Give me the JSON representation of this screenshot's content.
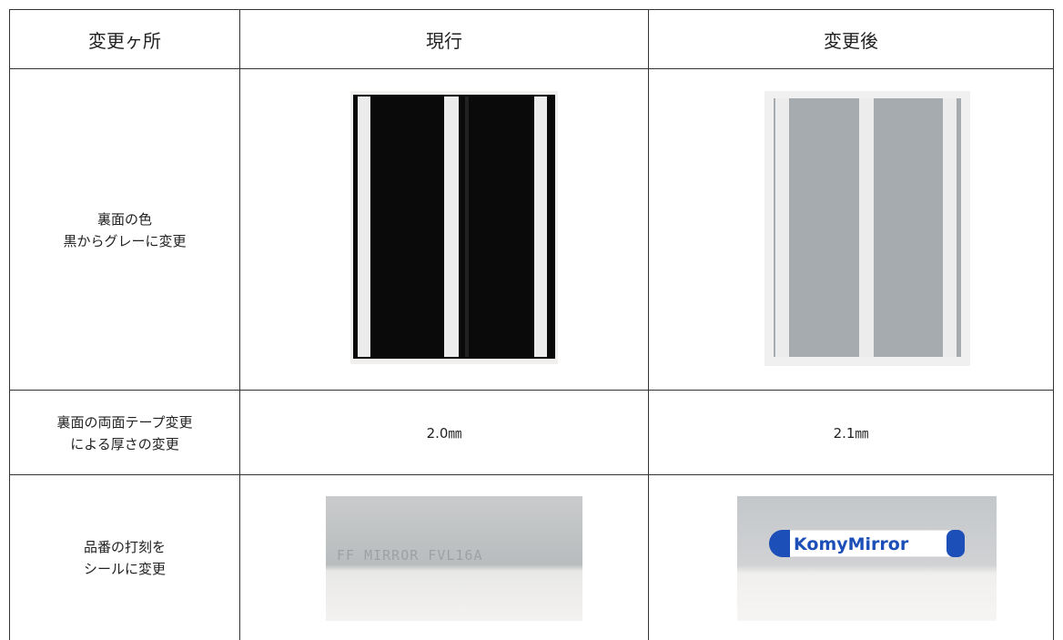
{
  "table": {
    "header": [
      "変更ヶ所",
      "現行",
      "変更後"
    ],
    "rows": [
      [
        [
          "裏面の色",
          "黒からグレーに変更"
        ],
        null,
        null
      ],
      [
        [
          "裏面の両面テープ変更",
          "による厚さの変更"
        ],
        "2.0㎜",
        "2.1㎜"
      ],
      [
        [
          "品番の打刻を",
          "シールに変更"
        ],
        null,
        null
      ]
    ],
    "photo_texts": {
      "current_stamp": "FF  MIRROR  FVL16A",
      "new_sticker": "KomyMirror"
    }
  }
}
